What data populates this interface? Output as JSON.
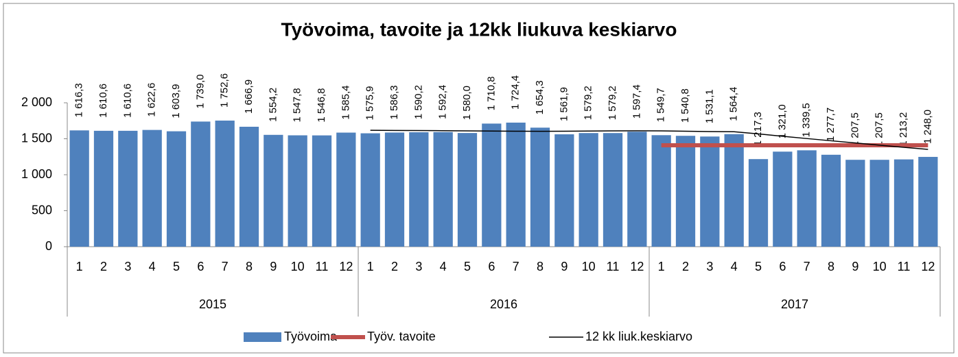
{
  "chart_data": {
    "type": "bar",
    "title": "Työvoima, tavoite ja 12kk liukuva keskiarvo",
    "categories": [
      "1",
      "2",
      "3",
      "4",
      "5",
      "6",
      "7",
      "8",
      "9",
      "10",
      "11",
      "12",
      "1",
      "2",
      "3",
      "4",
      "5",
      "6",
      "7",
      "8",
      "9",
      "10",
      "11",
      "12",
      "1",
      "2",
      "3",
      "4",
      "5",
      "6",
      "7",
      "8",
      "9",
      "10",
      "11",
      "12"
    ],
    "groups": [
      "2015",
      "2016",
      "2017"
    ],
    "ylim": [
      0,
      2000
    ],
    "yticks": [
      0,
      500,
      {
        "value": 1000,
        "label": "1 000"
      },
      {
        "value": 1500,
        "label": "1 500"
      },
      {
        "value": 2000,
        "label": "2 000"
      }
    ],
    "legend": "bottom",
    "series": [
      {
        "name": "Työvoima",
        "type": "bar",
        "color": "#4f81bd",
        "values": [
          1616.3,
          1610.6,
          1610.6,
          1622.6,
          1603.9,
          1739.0,
          1752.6,
          1666.9,
          1554.2,
          1547.8,
          1546.8,
          1585.4,
          1575.9,
          1586.3,
          1590.2,
          1592.4,
          1580.0,
          1710.8,
          1724.4,
          1654.3,
          1561.9,
          1579.2,
          1579.2,
          1597.4,
          1549.7,
          1540.8,
          1531.1,
          1564.4,
          1217.3,
          1321.0,
          1339.5,
          1277.7,
          1207.5,
          1207.5,
          1213.2,
          1248.0
        ],
        "value_labels": [
          "1 616,3",
          "1 610,6",
          "1 610,6",
          "1 622,6",
          "1 603,9",
          "1 739,0",
          "1 752,6",
          "1 666,9",
          "1 554,2",
          "1 547,8",
          "1 546,8",
          "1 585,4",
          "1 575,9",
          "1 586,3",
          "1 590,2",
          "1 592,4",
          "1 580,0",
          "1 710,8",
          "1 724,4",
          "1 654,3",
          "1 561,9",
          "1 579,2",
          "1 579,2",
          "1 597,4",
          "1 549,7",
          "1 540,8",
          "1 531,1",
          "1 564,4",
          "1 217,3",
          "1 321,0",
          "1 339,5",
          "1 277,7",
          "1 207,5",
          "1 207,5",
          "1 213,2",
          "1 248,0"
        ]
      },
      {
        "name": "Työv. tavoite",
        "type": "line",
        "color": "#c0504d",
        "values": [
          null,
          null,
          null,
          null,
          null,
          null,
          null,
          null,
          null,
          null,
          null,
          null,
          null,
          null,
          null,
          null,
          null,
          null,
          null,
          null,
          null,
          null,
          null,
          null,
          1410,
          1410,
          1410,
          1410,
          1410,
          1410,
          1410,
          1410,
          1410,
          1410,
          1410,
          1410
        ]
      },
      {
        "name": "12 kk liuk.keskiarvo",
        "type": "line",
        "color": "#000000",
        "values": [
          null,
          null,
          null,
          null,
          null,
          null,
          null,
          null,
          null,
          null,
          null,
          null,
          1618,
          1616,
          1614,
          1612,
          1610,
          1607,
          1605,
          1604,
          1605,
          1607,
          1610,
          1611,
          1609,
          1605,
          1600,
          1598,
          1568,
          1535,
          1503,
          1472,
          1442,
          1411,
          1381,
          1352
        ]
      }
    ]
  }
}
